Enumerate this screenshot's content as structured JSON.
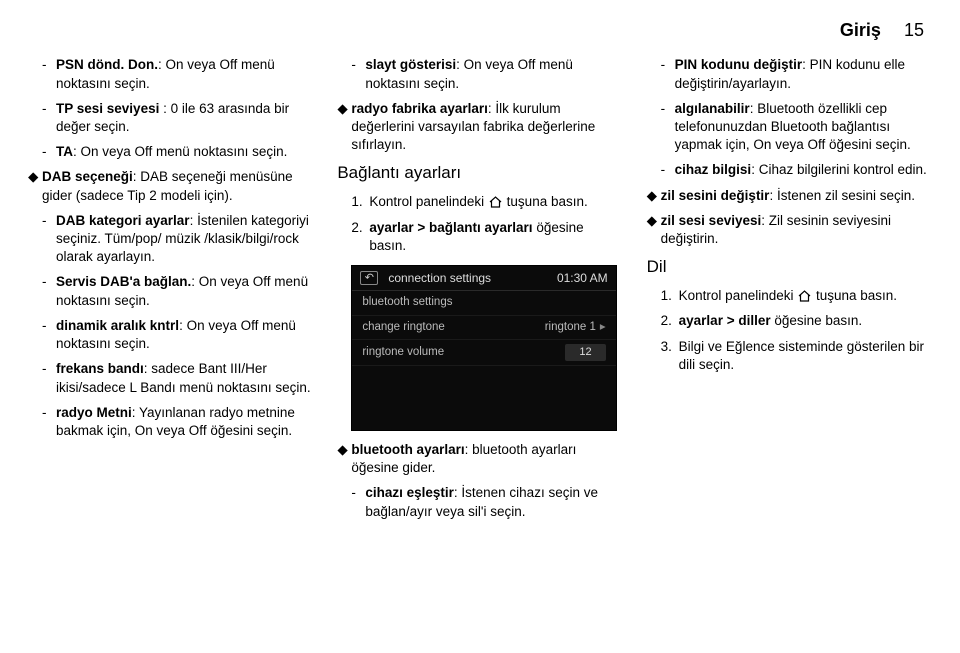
{
  "header": {
    "title": "Giriş",
    "page": "15"
  },
  "col1": [
    {
      "type": "subitem",
      "bold": "PSN dönd. Don.",
      "rest": ": On veya Off menü noktasını seçin."
    },
    {
      "type": "subitem",
      "bold": "TP sesi seviyesi",
      "rest": " : 0 ile 63 arasında bir değer seçin."
    },
    {
      "type": "subitem",
      "bold": "TA",
      "rest": ": On veya Off menü noktasını seçin."
    },
    {
      "type": "item",
      "bold": "DAB seçeneği",
      "rest": ": DAB seçeneği menüsüne gider (sadece Tip 2 modeli için)."
    },
    {
      "type": "subitem",
      "bold": "DAB kategori ayarlar",
      "rest": ": İstenilen kategoriyi seçiniz. Tüm/pop/ müzik /klasik/bilgi/rock olarak ayarlayın."
    },
    {
      "type": "subitem",
      "bold": "Servis DAB'a bağlan.",
      "rest": ": On veya Off menü noktasını seçin."
    },
    {
      "type": "subitem",
      "bold": "dinamik aralık kntrl",
      "rest": ": On veya Off menü noktasını seçin."
    },
    {
      "type": "subitem",
      "bold": "frekans bandı",
      "rest": ": sadece Bant III/Her ikisi/sadece L Bandı menü noktasını seçin."
    },
    {
      "type": "subitem",
      "bold": "radyo Metni",
      "rest": ": Yayınlanan radyo metnine bakmak için, On veya Off öğesini seçin."
    }
  ],
  "col2_top": [
    {
      "type": "subitem",
      "bold": "slayt gösterisi",
      "rest": ": On veya Off menü noktasını seçin."
    },
    {
      "type": "item",
      "bold": "radyo fabrika ayarları",
      "rest": ": İlk kurulum değerlerini varsayılan fabrika değerlerine sıfırlayın."
    }
  ],
  "col2_heading": "Bağlantı ayarları",
  "col2_steps": [
    {
      "num": "1.",
      "pre": "Kontrol panelindeki ",
      "post": " tuşuna basın."
    },
    {
      "num": "2.",
      "bold": "ayarlar > bağlantı ayarları",
      "rest": " öğesine basın."
    }
  ],
  "screenshot": {
    "title": "connection settings",
    "time": "01:30 AM",
    "rows": [
      {
        "l": "bluetooth settings",
        "r": ""
      },
      {
        "l": "change ringtone",
        "r": "ringtone 1",
        "chev": true
      },
      {
        "l": "ringtone volume",
        "vol": "12"
      }
    ]
  },
  "col2_bottom": [
    {
      "type": "item",
      "bold": "bluetooth ayarları",
      "rest": ": bluetooth ayarları öğesine gider."
    },
    {
      "type": "subitem",
      "bold": "cihazı eşleştir",
      "rest": ": İstenen cihazı seçin ve bağlan/ayır veya sil'i seçin."
    }
  ],
  "col3_top": [
    {
      "type": "subitem",
      "bold": "PIN kodunu değiştir",
      "rest": ": PIN kodunu elle değiştirin/ayarlayın."
    },
    {
      "type": "subitem",
      "bold": "algılanabilir",
      "rest": ": Bluetooth özellikli cep telefonunuzdan Bluetooth bağlantısı yapmak için, On veya Off öğesini seçin."
    },
    {
      "type": "subitem",
      "bold": "cihaz bilgisi",
      "rest": ": Cihaz bilgilerini kontrol edin."
    },
    {
      "type": "item",
      "bold": "zil sesini değiştir",
      "rest": ": İstenen zil sesini seçin."
    },
    {
      "type": "item",
      "bold": "zil sesi seviyesi",
      "rest": ": Zil sesinin seviyesini değiştirin."
    }
  ],
  "col3_heading": "Dil",
  "col3_steps": [
    {
      "num": "1.",
      "pre": "Kontrol panelindeki ",
      "post": " tuşuna basın."
    },
    {
      "num": "2.",
      "bold": "ayarlar > diller",
      "rest": " öğesine basın."
    },
    {
      "num": "3.",
      "text": "Bilgi ve Eğlence sisteminde gösterilen bir dili seçin."
    }
  ]
}
